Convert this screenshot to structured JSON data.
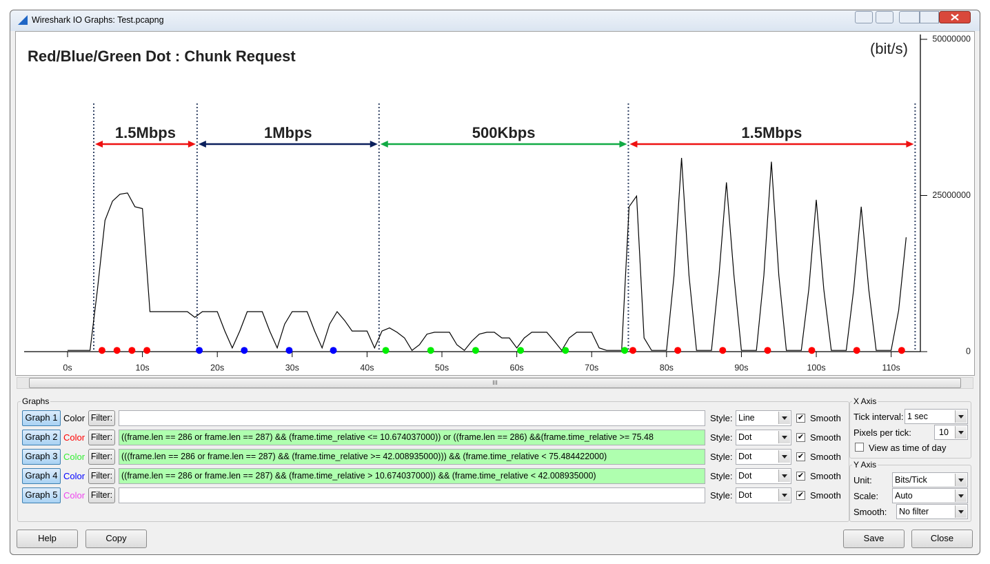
{
  "window": {
    "title": "Wireshark IO Graphs: Test.pcapng"
  },
  "chart_data": {
    "type": "line",
    "title": "Red/Blue/Green Dot : Chunk Request",
    "y_label": "(bit/s)",
    "xlim": [
      -5.8,
      113.9
    ],
    "ylim": [
      0,
      50000000
    ],
    "xticks": [
      {
        "value": 0,
        "label": "0s"
      },
      {
        "value": 10,
        "label": "10s"
      },
      {
        "value": 20,
        "label": "20s"
      },
      {
        "value": 30,
        "label": "30s"
      },
      {
        "value": 40,
        "label": "40s"
      },
      {
        "value": 50,
        "label": "50s"
      },
      {
        "value": 60,
        "label": "60s"
      },
      {
        "value": 70,
        "label": "70s"
      },
      {
        "value": 80,
        "label": "80s"
      },
      {
        "value": 90,
        "label": "90s"
      },
      {
        "value": 100,
        "label": "100s"
      },
      {
        "value": 110,
        "label": "110s"
      }
    ],
    "yticks": [
      0,
      25000000,
      50000000
    ],
    "dividers": [
      3.5,
      17.3,
      41.6,
      74.9,
      113.2
    ],
    "annotations": [
      {
        "text": "1.5Mbps",
        "color": "#ee1111"
      },
      {
        "text": "1Mbps",
        "color": "#0a1f5c"
      },
      {
        "text": "500Kbps",
        "color": "#11aa44"
      },
      {
        "text": "1.5Mbps",
        "color": "#ee1111"
      }
    ],
    "series": [
      {
        "style": "line",
        "color": "#000000",
        "x": [
          0,
          1,
          2,
          3,
          4,
          5,
          6,
          7,
          8,
          9,
          10,
          11,
          12,
          13,
          14,
          15,
          16,
          17,
          18,
          19,
          20,
          21,
          22,
          23,
          24,
          25,
          26,
          27,
          28,
          29,
          30,
          31,
          32,
          33,
          34,
          35,
          36,
          37,
          38,
          39,
          40,
          41,
          42,
          43,
          44,
          45,
          46,
          47,
          48,
          49,
          50,
          51,
          52,
          53,
          54,
          55,
          56,
          57,
          58,
          59,
          60,
          61,
          62,
          63,
          64,
          65,
          66,
          67,
          68,
          69,
          70,
          71,
          72,
          73,
          74,
          75,
          76,
          77,
          78,
          79,
          80,
          81,
          82,
          83,
          84,
          85,
          86,
          87,
          88,
          89,
          90,
          91,
          92,
          93,
          94,
          95,
          96,
          97,
          98,
          99,
          100,
          101,
          102,
          103,
          104,
          105,
          106,
          107,
          108,
          109,
          110,
          111,
          112
        ],
        "values": [
          200000,
          200000,
          200000,
          200000,
          10000000,
          21000000,
          24100000,
          25200000,
          25400000,
          23200000,
          22900000,
          6400000,
          6400000,
          6400000,
          6400000,
          6400000,
          6400000,
          5500000,
          6400000,
          6400000,
          6400000,
          3300000,
          600000,
          3300000,
          6400000,
          6400000,
          6400000,
          3300000,
          600000,
          4400000,
          6400000,
          6400000,
          6400000,
          3300000,
          600000,
          4400000,
          6400000,
          5000000,
          3300000,
          3300000,
          3300000,
          600000,
          3300000,
          3800000,
          3100000,
          2200000,
          200000,
          1100000,
          2800000,
          3100000,
          3100000,
          3100000,
          1100000,
          200000,
          1700000,
          2800000,
          3100000,
          3100000,
          2200000,
          2200000,
          600000,
          2200000,
          3100000,
          3100000,
          3100000,
          1700000,
          200000,
          2200000,
          3100000,
          3100000,
          3100000,
          600000,
          200000,
          200000,
          200000,
          23200000,
          24900000,
          2200000,
          200000,
          200000,
          200000,
          12200000,
          31000000,
          12200000,
          200000,
          200000,
          200000,
          12200000,
          27100000,
          12200000,
          200000,
          200000,
          200000,
          12200000,
          30400000,
          12200000,
          200000,
          200000,
          200000,
          10000000,
          24300000,
          10000000,
          200000,
          200000,
          200000,
          10000000,
          23200000,
          10000000,
          200000,
          200000,
          200000,
          6600000,
          18300000
        ]
      },
      {
        "style": "dot",
        "color": "#ff0000",
        "x": [
          4.6,
          6.6,
          8.6,
          10.6,
          75.5,
          81.5,
          87.5,
          93.5,
          99.4,
          105.4,
          111.4
        ],
        "values": [
          200000,
          200000,
          200000,
          200000,
          200000,
          200000,
          200000,
          200000,
          200000,
          200000,
          200000
        ]
      },
      {
        "style": "dot",
        "color": "#00ee00",
        "x": [
          42.5,
          48.5,
          54.5,
          60.5,
          66.5,
          74.4
        ],
        "values": [
          200000,
          200000,
          200000,
          200000,
          200000,
          200000
        ]
      },
      {
        "style": "dot",
        "color": "#0000ff",
        "x": [
          17.6,
          23.6,
          29.6,
          35.5
        ],
        "values": [
          200000,
          200000,
          200000,
          200000
        ]
      }
    ]
  },
  "scroll_thumb": "III",
  "graphs": {
    "title": "Graphs",
    "rows": [
      {
        "button": "Graph 1",
        "color_label": "Color",
        "color": "#000000",
        "filter_button": "Filter:",
        "style_label": "Style:",
        "style": "Line",
        "smooth_label": "Smooth",
        "smooth": true
      },
      {
        "button": "Graph 2",
        "color_label": "Color",
        "color": "#ff0000",
        "filter_button": "Filter:",
        "filter": "((frame.len == 286 or frame.len == 287) && (frame.time_relative <= 10.674037000)) or ((frame.len == 286) &&(frame.time_relative >= 75.48",
        "style_label": "Style:",
        "style": "Dot",
        "smooth_label": "Smooth",
        "smooth": true
      },
      {
        "button": "Graph 3",
        "color_label": "Color",
        "color": "#33ee33",
        "filter_button": "Filter:",
        "filter": "(((frame.len == 286 or frame.len == 287) && (frame.time_relative >= 42.008935000))) && (frame.time_relative < 75.484422000)",
        "style_label": "Style:",
        "style": "Dot",
        "smooth_label": "Smooth",
        "smooth": true
      },
      {
        "button": "Graph 4",
        "color_label": "Color",
        "color": "#0000ff",
        "filter_button": "Filter:",
        "filter": "((frame.len == 286 or frame.len == 287) && (frame.time_relative > 10.674037000)) && (frame.time_relative < 42.008935000)",
        "style_label": "Style:",
        "style": "Dot",
        "smooth_label": "Smooth",
        "smooth": true
      },
      {
        "button": "Graph 5",
        "color_label": "Color",
        "color": "#ee44ee",
        "filter_button": "Filter:",
        "style_label": "Style:",
        "style": "Dot",
        "smooth_label": "Smooth",
        "smooth": true
      }
    ]
  },
  "x_axis": {
    "title": "X Axis",
    "tick_interval_label": "Tick interval:",
    "tick_interval": "1 sec",
    "pixels_per_tick_label": "Pixels per tick:",
    "pixels_per_tick": 10,
    "time_of_day_label": "View as time of day",
    "time_of_day": false
  },
  "y_axis": {
    "title": "Y Axis",
    "unit_label": "Unit:",
    "unit": "Bits/Tick",
    "scale_label": "Scale:",
    "scale": "Auto",
    "smooth_label": "Smooth:",
    "smooth": "No filter"
  },
  "buttons": {
    "help": "Help",
    "copy": "Copy",
    "save": "Save",
    "close": "Close"
  }
}
